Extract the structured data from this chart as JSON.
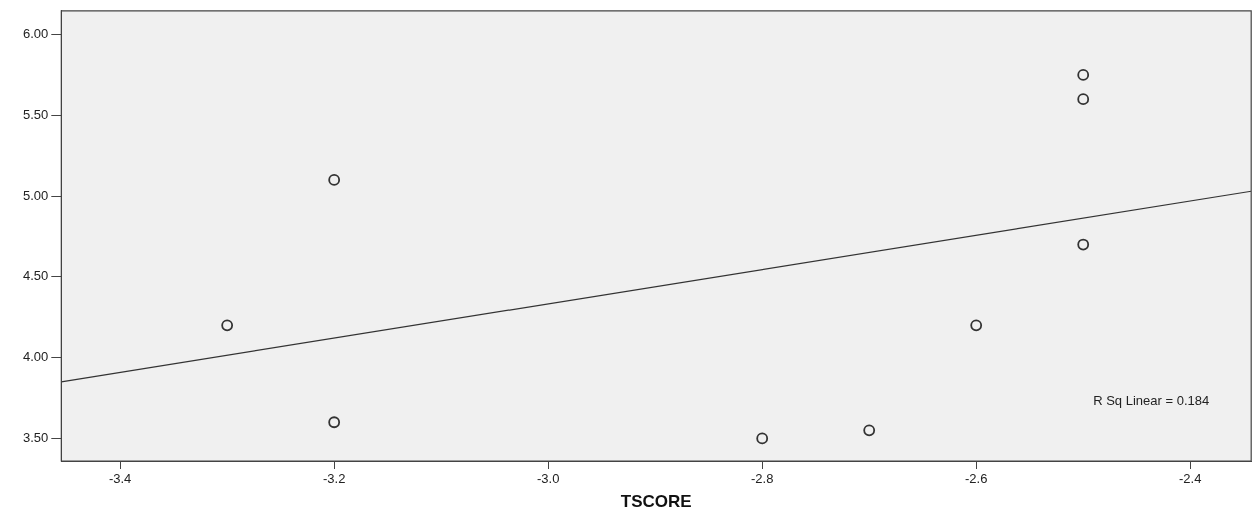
{
  "chart_data": {
    "type": "scatter",
    "xlabel": "TSCORE",
    "x": [
      -3.3,
      -3.2,
      -3.2,
      -2.8,
      -2.7,
      -2.6,
      -2.5,
      -2.5,
      -2.5
    ],
    "series": [
      {
        "color": "#333333",
        "marker": "circle",
        "values": [
          4.2,
          5.1,
          3.6,
          3.5,
          3.55,
          4.2,
          5.75,
          5.6,
          4.7
        ]
      },
      {
        "type": "line",
        "color": "#333333",
        "marker": "none",
        "x": [
          -3.455,
          -2.343
        ],
        "values": [
          3.85,
          5.03
        ]
      }
    ],
    "xlim": [
      -3.455,
      -2.343
    ],
    "xticks": [
      {
        "value": -3.4,
        "label": "-3.4"
      },
      {
        "value": -3.2,
        "label": "-3.2"
      },
      {
        "value": -3.0,
        "label": "-3.0"
      },
      {
        "value": -2.8,
        "label": "-2.8"
      },
      {
        "value": -2.6,
        "label": "-2.6"
      },
      {
        "value": -2.4,
        "label": "-2.4"
      }
    ],
    "ylim": [
      3.36,
      6.147
    ],
    "yticks": [
      {
        "value": 3.5,
        "label": "3.50"
      },
      {
        "value": 4.0,
        "label": "4.00"
      },
      {
        "value": 4.5,
        "label": "4.50"
      },
      {
        "value": 5.0,
        "label": "5.00"
      },
      {
        "value": 5.5,
        "label": "5.50"
      },
      {
        "value": 6.0,
        "label": "6.00"
      }
    ],
    "annotations": [
      "R Sq Linear = 0.184"
    ],
    "grid": false,
    "legend": false
  }
}
